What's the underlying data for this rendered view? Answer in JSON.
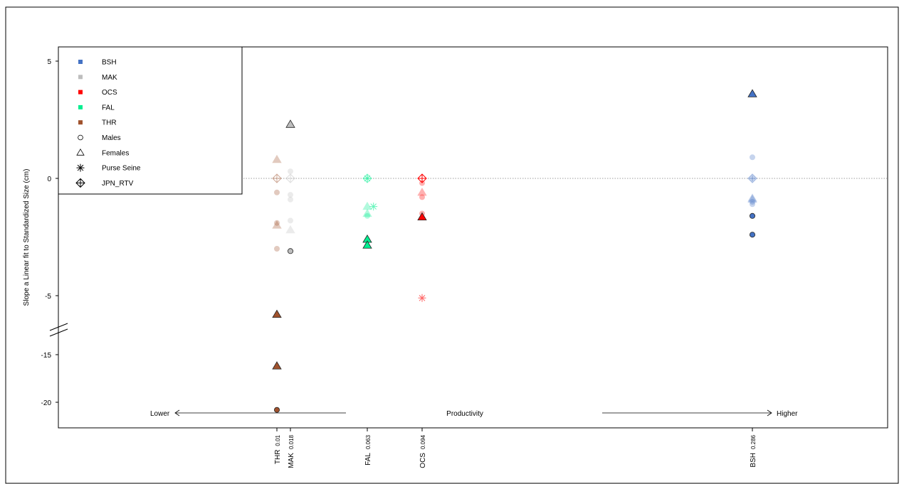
{
  "chart_data": {
    "type": "scatter",
    "title": "",
    "xlabel": "",
    "ylabel": "Slope a Linear fit to Standardized Size (cm)",
    "y_axis": {
      "broken": true,
      "upper_segment": {
        "ylim": [
          -6,
          5.5
        ],
        "ticks": [
          "5",
          "0",
          "-5"
        ]
      },
      "lower_segment": {
        "ylim": [
          -21,
          -15
        ],
        "ticks": [
          "-15",
          "-20"
        ]
      }
    },
    "reference_line_y": 0,
    "x_ticks": [
      {
        "species": "THR",
        "productivity": "0.01"
      },
      {
        "species": "MAK",
        "productivity": "0.018"
      },
      {
        "species": "FAL",
        "productivity": "0.063"
      },
      {
        "species": "OCS",
        "productivity": "0.094"
      },
      {
        "species": "BSH",
        "productivity": "0.286"
      }
    ],
    "productivity_axis": {
      "lower": "Lower",
      "center": "Productivity",
      "higher": "Higher"
    },
    "legend": {
      "position": "top-left",
      "entries": [
        {
          "label": "BSH",
          "symbol": "square",
          "color": "#4472C4"
        },
        {
          "label": "MAK",
          "symbol": "square",
          "color": "#BEBEBE"
        },
        {
          "label": "OCS",
          "symbol": "square",
          "color": "#FF0000"
        },
        {
          "label": "FAL",
          "symbol": "square",
          "color": "#00EE90"
        },
        {
          "label": "THR",
          "symbol": "square",
          "color": "#A0522D"
        },
        {
          "label": "Males",
          "symbol": "circle",
          "color": "#000000"
        },
        {
          "label": "Females",
          "symbol": "triangle",
          "color": "#000000"
        },
        {
          "label": "Purse Seine",
          "symbol": "asterisk",
          "color": "#000000"
        },
        {
          "label": "JPN_RTV",
          "symbol": "diamond-plus",
          "color": "#000000"
        }
      ]
    },
    "series": [
      {
        "species": "THR",
        "color": "#A0522D",
        "points": [
          {
            "x": 0.01,
            "y": 0.8,
            "shape": "triangle",
            "faded": true
          },
          {
            "x": 0.01,
            "y": 0.0,
            "shape": "diamond-plus",
            "faded": true
          },
          {
            "x": 0.01,
            "y": -0.6,
            "shape": "circle",
            "faded": true
          },
          {
            "x": 0.01,
            "y": -1.9,
            "shape": "circle",
            "faded": true
          },
          {
            "x": 0.01,
            "y": -2.0,
            "shape": "triangle",
            "faded": true
          },
          {
            "x": 0.01,
            "y": -3.0,
            "shape": "circle",
            "faded": true
          },
          {
            "x": 0.01,
            "y": -5.8,
            "shape": "triangle",
            "faded": false
          },
          {
            "x": 0.01,
            "y": -16.2,
            "shape": "triangle",
            "faded": false
          },
          {
            "x": 0.01,
            "y": -20.8,
            "shape": "circle",
            "faded": false
          }
        ]
      },
      {
        "species": "MAK",
        "color": "#BEBEBE",
        "points": [
          {
            "x": 0.018,
            "y": 2.3,
            "shape": "triangle",
            "faded": false
          },
          {
            "x": 0.018,
            "y": 0.3,
            "shape": "circle",
            "faded": true
          },
          {
            "x": 0.018,
            "y": 0.0,
            "shape": "diamond-plus",
            "faded": true
          },
          {
            "x": 0.018,
            "y": -0.7,
            "shape": "circle",
            "faded": true
          },
          {
            "x": 0.018,
            "y": -0.9,
            "shape": "circle",
            "faded": true
          },
          {
            "x": 0.018,
            "y": -1.8,
            "shape": "circle",
            "faded": true
          },
          {
            "x": 0.018,
            "y": -2.2,
            "shape": "triangle",
            "faded": true
          },
          {
            "x": 0.018,
            "y": -3.1,
            "shape": "circle",
            "faded": false
          }
        ]
      },
      {
        "species": "FAL",
        "color": "#00EE90",
        "points": [
          {
            "x": 0.063,
            "y": 0.0,
            "shape": "diamond-plus",
            "faded": true
          },
          {
            "x": 0.063,
            "y": 0.0,
            "shape": "asterisk",
            "faded": true
          },
          {
            "x": 0.063,
            "y": -1.2,
            "shape": "triangle",
            "faded": true
          },
          {
            "x": 0.063,
            "y": -1.5,
            "shape": "triangle",
            "faded": true
          },
          {
            "x": 0.063,
            "y": -1.6,
            "shape": "circle",
            "faded": true
          },
          {
            "x": 0.0665,
            "y": -1.2,
            "shape": "asterisk",
            "faded": true
          },
          {
            "x": 0.063,
            "y": -2.6,
            "shape": "triangle",
            "faded": false
          },
          {
            "x": 0.063,
            "y": -2.85,
            "shape": "triangle",
            "faded": false
          }
        ]
      },
      {
        "species": "OCS",
        "color": "#FF0000",
        "points": [
          {
            "x": 0.094,
            "y": 0.0,
            "shape": "diamond-plus",
            "faded": false
          },
          {
            "x": 0.094,
            "y": -0.2,
            "shape": "circle",
            "faded": true
          },
          {
            "x": 0.094,
            "y": -0.6,
            "shape": "triangle",
            "faded": true
          },
          {
            "x": 0.094,
            "y": -0.8,
            "shape": "circle",
            "faded": true
          },
          {
            "x": 0.094,
            "y": -1.5,
            "shape": "circle",
            "faded": true
          },
          {
            "x": 0.094,
            "y": -1.65,
            "shape": "triangle",
            "faded": false
          },
          {
            "x": 0.094,
            "y": -5.1,
            "shape": "asterisk",
            "faded": true
          }
        ]
      },
      {
        "species": "BSH",
        "color": "#4472C4",
        "points": [
          {
            "x": 0.286,
            "y": 3.6,
            "shape": "triangle",
            "faded": false
          },
          {
            "x": 0.286,
            "y": 0.9,
            "shape": "circle",
            "faded": true
          },
          {
            "x": 0.286,
            "y": 0.0,
            "shape": "diamond-plus",
            "faded": true
          },
          {
            "x": 0.286,
            "y": 0.0,
            "shape": "circle",
            "faded": true
          },
          {
            "x": 0.286,
            "y": -0.9,
            "shape": "triangle",
            "faded": true
          },
          {
            "x": 0.286,
            "y": -1.0,
            "shape": "circle",
            "faded": true
          },
          {
            "x": 0.286,
            "y": -1.1,
            "shape": "circle",
            "faded": true
          },
          {
            "x": 0.286,
            "y": -0.85,
            "shape": "triangle",
            "faded": true
          },
          {
            "x": 0.286,
            "y": -1.6,
            "shape": "circle",
            "faded": false
          },
          {
            "x": 0.286,
            "y": -2.4,
            "shape": "circle",
            "faded": false
          }
        ]
      }
    ]
  }
}
